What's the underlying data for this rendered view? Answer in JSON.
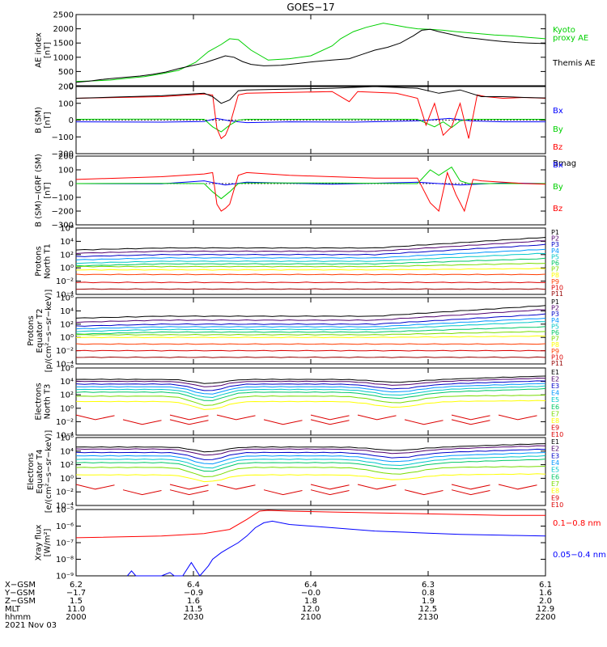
{
  "title": "GOES−17",
  "colors": {
    "black": "#000000",
    "green": "#00d000",
    "blue": "#0000ff",
    "red": "#ff0000",
    "p": [
      "#000000",
      "#50006e",
      "#0000c8",
      "#0096ff",
      "#00c8c8",
      "#00c864",
      "#78dc00",
      "#ffff00",
      "#ffa000",
      "#ff3c00",
      "#dc0000",
      "#960000"
    ]
  },
  "panels": [
    {
      "id": "ae",
      "ylabel": [
        "AE index",
        "[nT]"
      ],
      "ticks": [
        "2500",
        "2000",
        "1500",
        "1000",
        "500",
        "0"
      ],
      "legend": [
        {
          "t": "Kyoto",
          "c": "#00d000"
        },
        {
          "t": "proxy AE",
          "c": "#00d000"
        },
        {
          "t": "Themis AE",
          "c": "#000000"
        }
      ]
    },
    {
      "id": "bsm",
      "ylabel": [
        "B (SM)",
        "[nT]"
      ],
      "ticks": [
        "200",
        "100",
        "0",
        "−100",
        "−200"
      ],
      "legend": [
        {
          "t": "Bx",
          "c": "#0000ff"
        },
        {
          "t": "By",
          "c": "#00d000"
        },
        {
          "t": "Bz",
          "c": "#ff0000"
        },
        {
          "t": "Bmag",
          "c": "#000000"
        }
      ]
    },
    {
      "id": "bigrf",
      "ylabel": [
        "B (SM)−IGRF (SM)",
        "[nT]"
      ],
      "ticks": [
        "200",
        "100",
        "0",
        "−100",
        "−200",
        "−300"
      ],
      "legend": [
        {
          "t": "Bx",
          "c": "#0000ff"
        },
        {
          "t": "By",
          "c": "#00d000"
        },
        {
          "t": "Bz",
          "c": "#ff0000"
        }
      ]
    },
    {
      "id": "pn",
      "ylabel": [
        "Protons",
        "North T1"
      ],
      "ticks": [
        "10⁶",
        "10⁴",
        "10²",
        "10⁰",
        "10⁻²",
        "10⁻⁴"
      ],
      "legend": [
        "P1",
        "P2",
        "P3",
        "P4",
        "P5",
        "P6",
        "P7",
        "P8",
        "P9",
        "P10",
        "P11"
      ]
    },
    {
      "id": "pe",
      "ylabel": [
        "Protons",
        "Equator T2",
        "[p/(cm²−s−sr−keV)]"
      ],
      "ticks": [
        "10⁶",
        "10⁴",
        "10²",
        "10⁰",
        "10⁻²",
        "10⁻⁴"
      ],
      "legend": [
        "P1",
        "P2",
        "P3",
        "P4",
        "P5",
        "P6",
        "P7",
        "P8",
        "P9",
        "P10",
        "P11"
      ]
    },
    {
      "id": "en",
      "ylabel": [
        "Electrons",
        "North T3"
      ],
      "ticks": [
        "10⁶",
        "10⁴",
        "10²",
        "10⁰",
        "10⁻²",
        "10⁻⁴"
      ],
      "legend": [
        "E1",
        "E2",
        "E3",
        "E4",
        "E5",
        "E6",
        "E7",
        "E8",
        "E9",
        "E10"
      ]
    },
    {
      "id": "ee",
      "ylabel": [
        "Electrons",
        "Equator T4",
        "[e/(cm²−s−sr−keV)]"
      ],
      "ticks": [
        "10⁶",
        "10⁴",
        "10²",
        "10⁰",
        "10⁻²",
        "10⁻⁴"
      ],
      "legend": [
        "E1",
        "E2",
        "E3",
        "E4",
        "E5",
        "E6",
        "E7",
        "E8",
        "E9",
        "E10"
      ]
    },
    {
      "id": "xr",
      "ylabel": [
        "Xray flux",
        "[W/m²]"
      ],
      "ticks": [
        "10⁻⁵",
        "10⁻⁶",
        "10⁻⁷",
        "10⁻⁸",
        "10⁻⁹"
      ],
      "legend": [
        {
          "t": "0.1−0.8 nm",
          "c": "#ff0000"
        },
        {
          "t": "0.05−0.4 nm",
          "c": "#0000ff"
        }
      ]
    }
  ],
  "footer": {
    "labels": [
      "X−GSM",
      "Y−GSM",
      "Z−GSM",
      "MLT",
      "hhmm",
      "2021 Nov 03"
    ],
    "columns": [
      [
        "6.2",
        "−1.7",
        "1.5",
        "11.0",
        "2000"
      ],
      [
        "6.4",
        "−0.9",
        "1.6",
        "11.5",
        "2030"
      ],
      [
        "6.4",
        "−0.0",
        "1.8",
        "12.0",
        "2100"
      ],
      [
        "6.3",
        "0.8",
        "1.9",
        "12.5",
        "2130"
      ],
      [
        "6.1",
        "1.6",
        "2.0",
        "12.9",
        "2200"
      ]
    ]
  },
  "chart_data": {
    "type": "line",
    "title": "GOES−17",
    "x_ticks": [
      "2000",
      "2030",
      "2100",
      "2130",
      "2200"
    ],
    "x_range": [
      "2000",
      "2200"
    ],
    "ae": {
      "ylim": [
        0,
        2500
      ],
      "series": [
        {
          "name": "Kyoto proxy AE",
          "color": "#00d000",
          "x": [
            0,
            8,
            16,
            24,
            32,
            40,
            48,
            56,
            62,
            68,
            72,
            76,
            82,
            90,
            100,
            110,
            120,
            124,
            130,
            136,
            144,
            150,
            155,
            160,
            166,
            172,
            178,
            184,
            190,
            196,
            204,
            212,
            220
          ],
          "values": [
            150,
            170,
            200,
            260,
            320,
            420,
            540,
            820,
            1200,
            1450,
            1650,
            1620,
            1250,
            900,
            950,
            1050,
            1400,
            1650,
            1900,
            2050,
            2200,
            2120,
            2050,
            2000,
            1980,
            1950,
            1900,
            1860,
            1820,
            1780,
            1750,
            1700,
            1650
          ]
        },
        {
          "name": "Themis AE",
          "color": "#000000",
          "x": [
            0,
            6,
            12,
            18,
            24,
            30,
            36,
            42,
            48,
            54,
            60,
            66,
            70,
            74,
            78,
            82,
            88,
            96,
            104,
            112,
            120,
            128,
            134,
            140,
            146,
            152,
            158,
            162,
            166,
            170,
            176,
            182,
            188,
            194,
            200,
            206,
            212,
            220
          ],
          "values": [
            120,
            160,
            220,
            260,
            300,
            340,
            400,
            480,
            600,
            700,
            800,
            950,
            1050,
            1000,
            850,
            750,
            700,
            720,
            780,
            850,
            900,
            950,
            1100,
            1250,
            1350,
            1500,
            1750,
            1950,
            1980,
            1900,
            1800,
            1700,
            1650,
            1600,
            1550,
            1520,
            1500,
            1480
          ]
        }
      ]
    },
    "b_sm": {
      "ylim": [
        -200,
        200
      ],
      "series": [
        {
          "name": "Bx",
          "color": "#0000ff",
          "x": [
            0,
            40,
            60,
            66,
            72,
            80,
            100,
            130,
            160,
            175,
            185,
            200,
            220
          ],
          "values": [
            -10,
            -12,
            -8,
            10,
            -5,
            -15,
            -10,
            -12,
            -5,
            10,
            -5,
            -10,
            -10
          ]
        },
        {
          "name": "By",
          "color": "#00d000",
          "x": [
            0,
            40,
            60,
            64,
            68,
            72,
            76,
            80,
            100,
            130,
            160,
            168,
            172,
            176,
            180,
            184,
            190,
            200,
            220
          ],
          "values": [
            5,
            6,
            5,
            -40,
            -70,
            -30,
            0,
            5,
            5,
            6,
            5,
            -40,
            -10,
            -45,
            -5,
            5,
            5,
            5,
            5
          ]
        },
        {
          "name": "Bz",
          "color": "#ff0000",
          "x": [
            0,
            20,
            40,
            60,
            64,
            66,
            68,
            70,
            72,
            76,
            80,
            100,
            120,
            128,
            132,
            150,
            160,
            164,
            168,
            172,
            176,
            180,
            184,
            188,
            192,
            200,
            210,
            220
          ],
          "values": [
            130,
            135,
            140,
            155,
            150,
            -50,
            -110,
            -90,
            -30,
            150,
            160,
            165,
            170,
            110,
            170,
            160,
            130,
            -30,
            100,
            -90,
            -40,
            100,
            -110,
            150,
            140,
            130,
            135,
            130
          ]
        },
        {
          "name": "Bmag",
          "color": "#000000",
          "x": [
            0,
            20,
            40,
            60,
            64,
            68,
            72,
            76,
            80,
            100,
            120,
            140,
            160,
            170,
            180,
            190,
            200,
            210,
            220
          ],
          "values": [
            130,
            138,
            145,
            160,
            140,
            100,
            120,
            175,
            180,
            185,
            190,
            200,
            190,
            160,
            180,
            140,
            140,
            135,
            132
          ]
        }
      ]
    },
    "b_igrf": {
      "ylim": [
        -300,
        200
      ],
      "series": [
        {
          "name": "Bx",
          "color": "#0000ff",
          "x": [
            0,
            40,
            60,
            70,
            80,
            120,
            160,
            180,
            200,
            220
          ],
          "values": [
            0,
            -2,
            20,
            -10,
            10,
            -5,
            10,
            -10,
            5,
            0
          ]
        },
        {
          "name": "By",
          "color": "#00d000",
          "x": [
            0,
            40,
            60,
            64,
            68,
            72,
            76,
            80,
            120,
            160,
            166,
            170,
            176,
            180,
            184,
            190,
            200,
            220
          ],
          "values": [
            0,
            2,
            0,
            -60,
            -110,
            -60,
            0,
            5,
            5,
            0,
            100,
            60,
            120,
            20,
            0,
            0,
            0,
            0
          ]
        },
        {
          "name": "Bz",
          "color": "#ff0000",
          "x": [
            0,
            20,
            40,
            60,
            64,
            66,
            68,
            70,
            72,
            76,
            80,
            100,
            120,
            140,
            160,
            166,
            170,
            174,
            178,
            182,
            186,
            190,
            200,
            210,
            220
          ],
          "values": [
            30,
            40,
            50,
            70,
            80,
            -150,
            -200,
            -180,
            -150,
            60,
            80,
            60,
            50,
            40,
            40,
            -140,
            -200,
            80,
            -80,
            -200,
            30,
            20,
            10,
            0,
            -5
          ]
        }
      ]
    },
    "protons_north_T1": {
      "log_ylim": [
        -4,
        6
      ],
      "channels": [
        "P1",
        "P2",
        "P3",
        "P4",
        "P5",
        "P6",
        "P7",
        "P8",
        "P9",
        "P10",
        "P11"
      ],
      "levels": [
        3.0,
        2.5,
        2.0,
        1.5,
        1.0,
        0.6,
        0.2,
        -0.3,
        -1.0,
        -2.2,
        -3.2
      ],
      "late_rise": [
        1.6,
        1.6,
        1.5,
        1.3,
        1.2,
        0.8,
        0.5,
        0.2,
        0,
        0,
        0
      ]
    },
    "protons_equator_T2": {
      "log_ylim": [
        -4,
        6
      ],
      "channels": [
        "P1",
        "P2",
        "P3",
        "P4",
        "P5",
        "P6",
        "P7",
        "P8",
        "P9",
        "P10",
        "P11"
      ],
      "levels": [
        3.2,
        2.6,
        2.0,
        1.6,
        1.2,
        0.8,
        0.4,
        0.0,
        -1.0,
        -2.0,
        -3.0
      ],
      "late_rise": [
        1.6,
        1.6,
        1.5,
        1.3,
        1.2,
        0.8,
        0.5,
        0.2,
        0,
        0,
        0
      ]
    },
    "electrons_north_T3": {
      "log_ylim": [
        -4,
        6
      ],
      "channels": [
        "E1",
        "E2",
        "E3",
        "E4",
        "E5",
        "E6",
        "E7",
        "E8",
        "E9",
        "E10"
      ],
      "levels": [
        4.3,
        4.0,
        3.6,
        3.2,
        2.8,
        2.4,
        1.8,
        1.0,
        -1.3,
        -2.0
      ],
      "dip_at": 62,
      "dip": [
        0.6,
        0.8,
        1.0,
        1.1,
        1.2,
        1.3,
        1.4,
        1.2,
        0,
        0
      ]
    },
    "electrons_equator_T4": {
      "log_ylim": [
        -4,
        6
      ],
      "channels": [
        "E1",
        "E2",
        "E3",
        "E4",
        "E5",
        "E6",
        "E7",
        "E8",
        "E9",
        "E10"
      ],
      "levels": [
        4.6,
        4.3,
        3.8,
        3.3,
        2.8,
        2.3,
        1.6,
        0.5,
        -1.2,
        -2.0
      ],
      "dip_at": 62,
      "dip": [
        0.7,
        0.9,
        1.1,
        1.2,
        1.3,
        1.3,
        1.4,
        1.0,
        0,
        0
      ]
    },
    "xray": {
      "log_ylim": [
        -9,
        -5
      ],
      "series": [
        {
          "name": "0.1−0.8 nm",
          "color": "#ff0000",
          "x": [
            0,
            40,
            60,
            72,
            80,
            86,
            90,
            100,
            120,
            140,
            160,
            180,
            200,
            220
          ],
          "values": [
            -6.7,
            -6.6,
            -6.45,
            -6.2,
            -5.6,
            -5.1,
            -5.05,
            -5.1,
            -5.15,
            -5.2,
            -5.25,
            -5.3,
            -5.35,
            -5.35
          ]
        },
        {
          "name": "0.05−0.4 nm",
          "color": "#0000ff",
          "x": [
            24,
            26,
            28,
            40,
            44,
            46,
            50,
            54,
            58,
            62,
            64,
            68,
            72,
            76,
            80,
            84,
            88,
            92,
            100,
            120,
            140,
            160,
            180,
            200,
            220
          ],
          "values": [
            -9,
            -8.7,
            -9,
            -9,
            -8.8,
            -9,
            -9,
            -8.2,
            -9,
            -8.4,
            -8.0,
            -7.6,
            -7.3,
            -7.0,
            -6.6,
            -6.1,
            -5.8,
            -5.7,
            -5.9,
            -6.1,
            -6.3,
            -6.4,
            -6.5,
            -6.55,
            -6.6
          ]
        }
      ]
    }
  }
}
